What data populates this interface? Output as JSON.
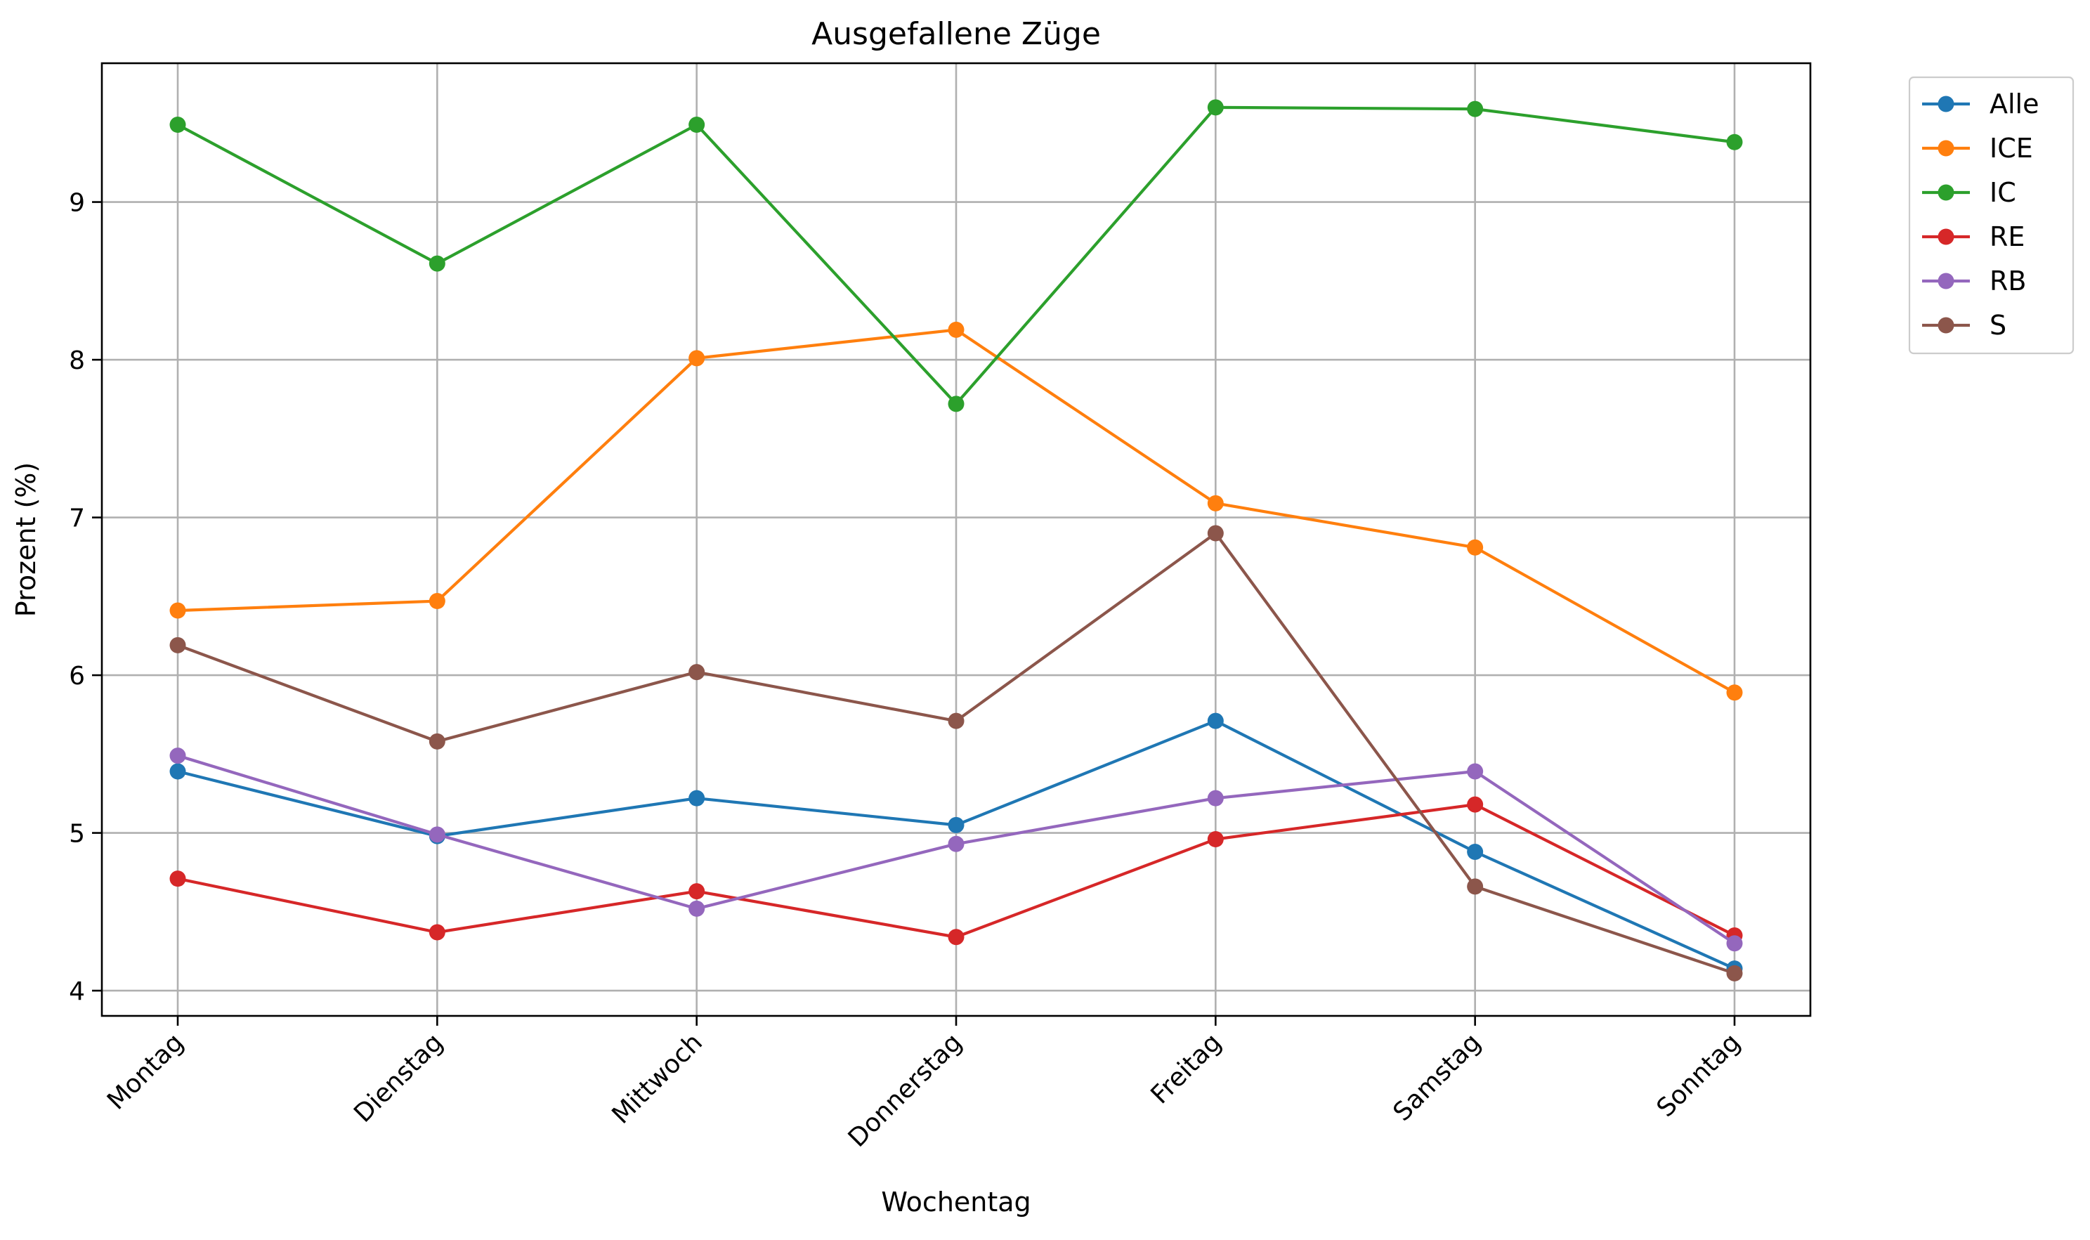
{
  "chart_data": {
    "type": "line",
    "title": "Ausgefallene Züge",
    "xlabel": "Wochentag",
    "ylabel": "Prozent (%)",
    "categories": [
      "Montag",
      "Dienstag",
      "Mittwoch",
      "Donnerstag",
      "Freitag",
      "Samstag",
      "Sonntag"
    ],
    "ylim": [
      3.84,
      9.88
    ],
    "yticks": [
      4,
      5,
      6,
      7,
      8,
      9
    ],
    "grid": true,
    "legend_position": "outside-top-right",
    "series": [
      {
        "name": "Alle",
        "color": "#1f77b4",
        "values": [
          5.39,
          4.98,
          5.22,
          5.05,
          5.71,
          4.88,
          4.14
        ]
      },
      {
        "name": "ICE",
        "color": "#ff7f0e",
        "values": [
          6.41,
          6.47,
          8.01,
          8.19,
          7.09,
          6.81,
          5.89
        ]
      },
      {
        "name": "IC",
        "color": "#2ca02c",
        "values": [
          9.49,
          8.61,
          9.49,
          7.72,
          9.6,
          9.59,
          9.38
        ]
      },
      {
        "name": "RE",
        "color": "#d62728",
        "values": [
          4.71,
          4.37,
          4.63,
          4.34,
          4.96,
          5.18,
          4.35
        ]
      },
      {
        "name": "RB",
        "color": "#9467bd",
        "values": [
          5.49,
          4.99,
          4.52,
          4.93,
          5.22,
          5.39,
          4.3
        ]
      },
      {
        "name": "S",
        "color": "#8c564b",
        "values": [
          6.19,
          5.58,
          6.02,
          5.71,
          6.9,
          4.66,
          4.11
        ]
      }
    ]
  }
}
